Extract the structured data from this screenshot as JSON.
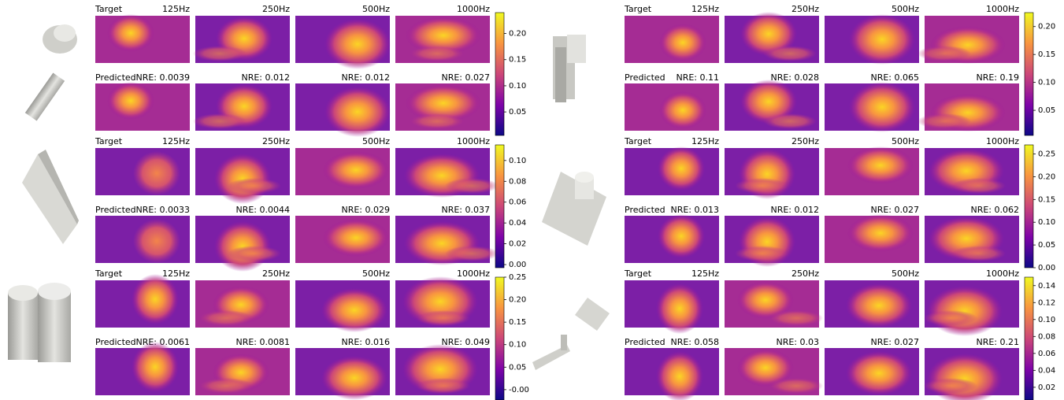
{
  "panels": [
    {
      "target": "Target",
      "predicted": "Predicted",
      "frequencies": [
        "125Hz",
        "250Hz",
        "500Hz",
        "1000Hz"
      ],
      "nre": [
        "NRE: 0.0039",
        "NRE: 0.012",
        "NRE: 0.012",
        "NRE: 0.027"
      ],
      "clim": [
        0.005,
        0.24
      ],
      "ticks": [
        0.05,
        {
          "value": 0.1,
          "label": "0.10"
        },
        0.15,
        {
          "value": 0.2,
          "label": "0.20"
        }
      ]
    },
    {
      "target": "Target",
      "predicted": "Predicted",
      "frequencies": [
        "125Hz",
        "250Hz",
        "500Hz",
        "1000Hz"
      ],
      "nre": [
        "NRE: 0.0033",
        "NRE: 0.0044",
        "NRE: 0.029",
        "NRE: 0.037"
      ],
      "clim": [
        -0.003,
        0.115
      ],
      "ticks": [
        {
          "value": 0,
          "label": "0.00"
        },
        0.02,
        0.04,
        0.06,
        0.08,
        {
          "value": 0.1,
          "label": "0.10"
        }
      ]
    },
    {
      "target": "Target",
      "predicted": "Predicted",
      "frequencies": [
        "125Hz",
        "250Hz",
        "500Hz",
        "1000Hz"
      ],
      "nre": [
        "NRE: 0.0061",
        "NRE: 0.0081",
        "NRE: 0.016",
        "NRE: 0.049"
      ],
      "clim": [
        -0.023,
        0.25
      ],
      "ticks": [
        {
          "value": 0,
          "label": "-0.00"
        },
        0.05,
        {
          "value": 0.1,
          "label": "0.10"
        },
        0.15,
        {
          "value": 0.2,
          "label": "0.20"
        },
        0.25
      ]
    },
    {
      "target": "Target",
      "predicted": "Predicted",
      "frequencies": [
        "125Hz",
        "250Hz",
        "500Hz",
        "1000Hz"
      ],
      "nre": [
        "NRE: 0.11",
        "NRE: 0.028",
        "NRE: 0.065",
        "NRE: 0.19"
      ],
      "clim": [
        0.005,
        0.225
      ],
      "ticks": [
        0.05,
        {
          "value": 0.1,
          "label": "0.10"
        },
        0.15,
        {
          "value": 0.2,
          "label": "0.20"
        }
      ]
    },
    {
      "target": "Target",
      "predicted": "Predicted",
      "frequencies": [
        "125Hz",
        "250Hz",
        "500Hz",
        "1000Hz"
      ],
      "nre": [
        "NRE: 0.013",
        "NRE: 0.012",
        "NRE: 0.027",
        "NRE: 0.062"
      ],
      "clim": [
        0,
        0.27
      ],
      "ticks": [
        {
          "value": 0,
          "label": "0.00"
        },
        0.05,
        {
          "value": 0.1,
          "label": "0.10"
        },
        0.15,
        {
          "value": 0.2,
          "label": "0.20"
        },
        0.25
      ]
    },
    {
      "target": "Target",
      "predicted": "Predicted",
      "frequencies": [
        "125Hz",
        "250Hz",
        "500Hz",
        "1000Hz"
      ],
      "nre": [
        "NRE: 0.058",
        "NRE: 0.03",
        "NRE: 0.027",
        "NRE: 0.21"
      ],
      "clim": [
        0.005,
        0.15
      ],
      "ticks": [
        0.02,
        0.04,
        0.06,
        0.08,
        {
          "value": 0.1,
          "label": "0.10"
        },
        0.12,
        0.14
      ]
    }
  ]
}
